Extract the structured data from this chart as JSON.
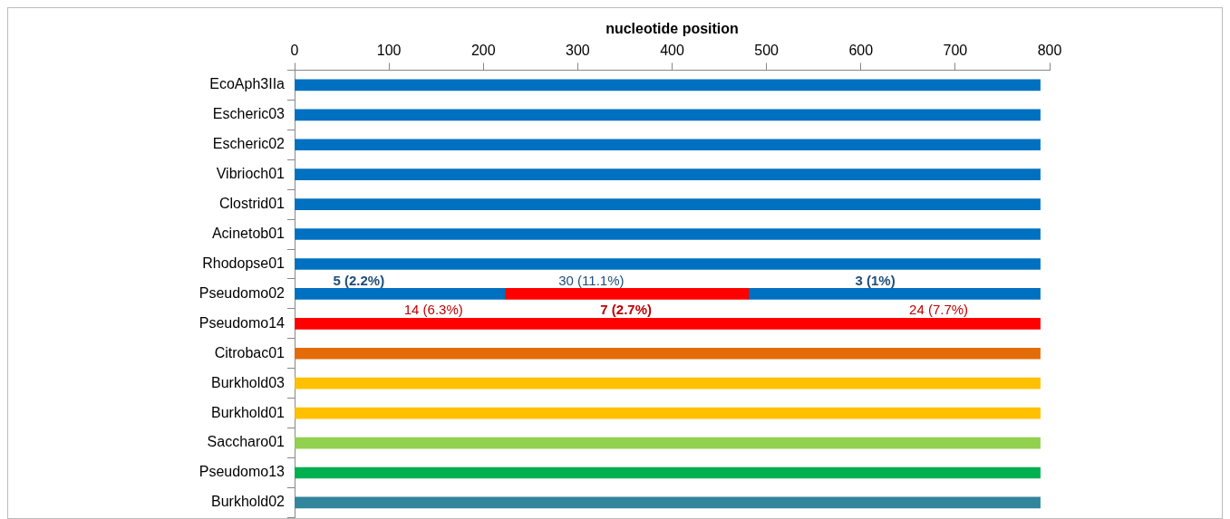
{
  "chart_data": {
    "type": "bar",
    "orientation": "horizontal",
    "stacked": true,
    "xlabel": "nucleotide position",
    "xlim": [
      0,
      800
    ],
    "xticks": [
      0,
      100,
      200,
      300,
      400,
      500,
      600,
      700,
      800
    ],
    "grid": false,
    "legend": false,
    "categories": [
      "EcoAph3IIa",
      "Escheric03",
      "Escheric02",
      "Vibrioch01",
      "Clostrid01",
      "Acinetob01",
      "Rhodopse01",
      "Pseudomo02",
      "Pseudomo14",
      "Citrobac01",
      "Burkhold03",
      "Burkhold01",
      "Saccharo01",
      "Pseudomo13",
      "Burkhold02"
    ],
    "series": [
      {
        "values": [
          790,
          790,
          790,
          790,
          790,
          790,
          790,
          223,
          790,
          790,
          790,
          790,
          790,
          790,
          790
        ],
        "colors": [
          "#0070c0",
          "#0070c0",
          "#0070c0",
          "#0070c0",
          "#0070c0",
          "#0070c0",
          "#0070c0",
          "#0070c0",
          "#ff0000",
          "#e36c09",
          "#ffc000",
          "#ffc000",
          "#92d050",
          "#00b050",
          "#31859c"
        ]
      },
      {
        "values": [
          null,
          null,
          null,
          null,
          null,
          null,
          null,
          258,
          null,
          null,
          null,
          null,
          null,
          null,
          null
        ],
        "color": "#ff0000"
      },
      {
        "values": [
          null,
          null,
          null,
          null,
          null,
          null,
          null,
          309,
          null,
          null,
          null,
          null,
          null,
          null,
          null
        ],
        "color": "#0070c0"
      }
    ],
    "annotations": [
      "5 (2.2%)",
      "30 (11.1%)",
      "3 (1%)",
      "14 (6.3%)",
      "7 (2.7%)",
      "24 (7.7%)"
    ]
  }
}
